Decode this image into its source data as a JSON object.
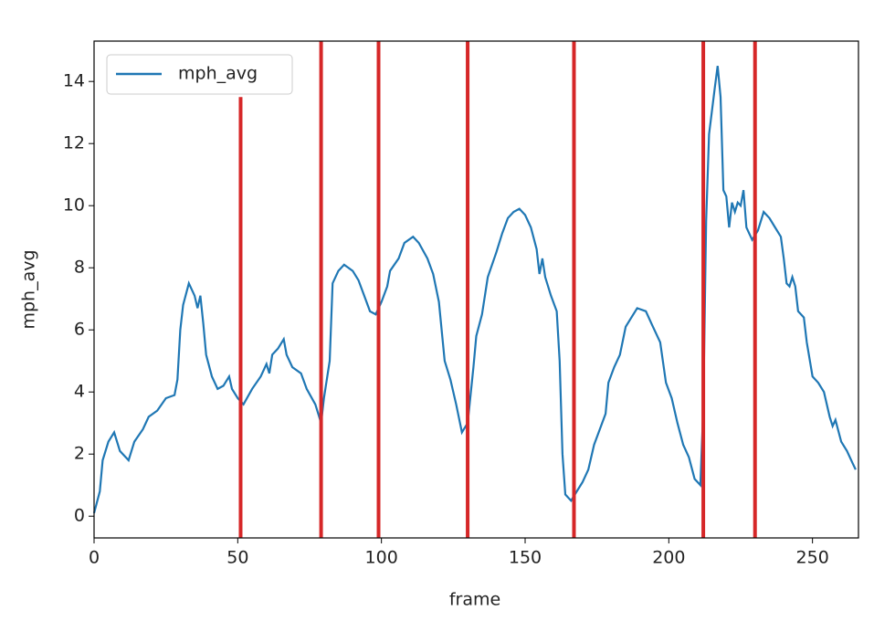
{
  "chart_data": {
    "type": "line",
    "x_label": "frame",
    "y_label": "mph_avg",
    "xlim": [
      0,
      266
    ],
    "ylim": [
      -0.7,
      15.3
    ],
    "xticks": [
      0,
      50,
      100,
      150,
      200,
      250
    ],
    "yticks": [
      0,
      2,
      4,
      6,
      8,
      10,
      12,
      14
    ],
    "legend": "upper left",
    "series": [
      {
        "name": "mph_avg",
        "color": "#1f77b4",
        "x": [
          0,
          2,
          3,
          5,
          7,
          9,
          12,
          14,
          17,
          19,
          22,
          25,
          28,
          29,
          30,
          31,
          33,
          35,
          36,
          37,
          38,
          39,
          41,
          43,
          45,
          47,
          48,
          50,
          52,
          55,
          58,
          60,
          61,
          62,
          64,
          66,
          67,
          69,
          72,
          74,
          77,
          79,
          80,
          82,
          83,
          85,
          87,
          90,
          92,
          94,
          96,
          98,
          100,
          102,
          103,
          106,
          108,
          111,
          113,
          116,
          118,
          120,
          122,
          124,
          126,
          128,
          130,
          132,
          133,
          135,
          137,
          140,
          142,
          144,
          146,
          148,
          150,
          152,
          154,
          155,
          156,
          157,
          159,
          161,
          162,
          163,
          164,
          166,
          168,
          170,
          172,
          174,
          176,
          178,
          179,
          181,
          183,
          185,
          187,
          189,
          192,
          194,
          197,
          199,
          201,
          203,
          205,
          207,
          209,
          211,
          212,
          213,
          214,
          216,
          217,
          218,
          219,
          220,
          221,
          222,
          223,
          224,
          225,
          226,
          227,
          229,
          231,
          233,
          235,
          237,
          239,
          240,
          241,
          242,
          243,
          244,
          245,
          247,
          248,
          250,
          252,
          254,
          256,
          257,
          258,
          260,
          262,
          264,
          265
        ],
        "values": [
          0.1,
          0.8,
          1.8,
          2.4,
          2.7,
          2.1,
          1.8,
          2.4,
          2.8,
          3.2,
          3.4,
          3.8,
          3.9,
          4.4,
          6.0,
          6.8,
          7.5,
          7.1,
          6.7,
          7.1,
          6.2,
          5.2,
          4.5,
          4.1,
          4.2,
          4.5,
          4.1,
          3.8,
          3.6,
          4.1,
          4.5,
          4.9,
          4.6,
          5.2,
          5.4,
          5.7,
          5.2,
          4.8,
          4.6,
          4.1,
          3.6,
          3.0,
          3.8,
          5.0,
          7.5,
          7.9,
          8.1,
          7.9,
          7.6,
          7.1,
          6.6,
          6.5,
          6.9,
          7.4,
          7.9,
          8.3,
          8.8,
          9.0,
          8.8,
          8.3,
          7.8,
          6.9,
          5.0,
          4.4,
          3.6,
          2.7,
          3.0,
          4.8,
          5.8,
          6.5,
          7.7,
          8.5,
          9.1,
          9.6,
          9.8,
          9.9,
          9.7,
          9.3,
          8.6,
          7.8,
          8.3,
          7.7,
          7.1,
          6.6,
          5.0,
          2.0,
          0.7,
          0.5,
          0.8,
          1.1,
          1.5,
          2.3,
          2.8,
          3.3,
          4.3,
          4.8,
          5.2,
          6.1,
          6.4,
          6.7,
          6.6,
          6.2,
          5.6,
          4.3,
          3.8,
          3.0,
          2.3,
          1.9,
          1.2,
          1.0,
          3.5,
          9.5,
          12.3,
          13.8,
          14.5,
          13.5,
          10.5,
          10.3,
          9.3,
          10.1,
          9.8,
          10.1,
          10.0,
          10.5,
          9.3,
          8.9,
          9.2,
          9.8,
          9.6,
          9.3,
          9.0,
          8.3,
          7.5,
          7.4,
          7.7,
          7.4,
          6.6,
          6.4,
          5.6,
          4.5,
          4.3,
          4.0,
          3.2,
          2.9,
          3.1,
          2.4,
          2.1,
          1.7,
          1.5
        ]
      }
    ],
    "vlines": {
      "color": "#d62728",
      "x": [
        51,
        79,
        99,
        130,
        167,
        212,
        230
      ],
      "ymax": [
        13.5,
        15.3,
        15.3,
        15.3,
        15.3,
        15.3,
        15.3
      ]
    }
  }
}
